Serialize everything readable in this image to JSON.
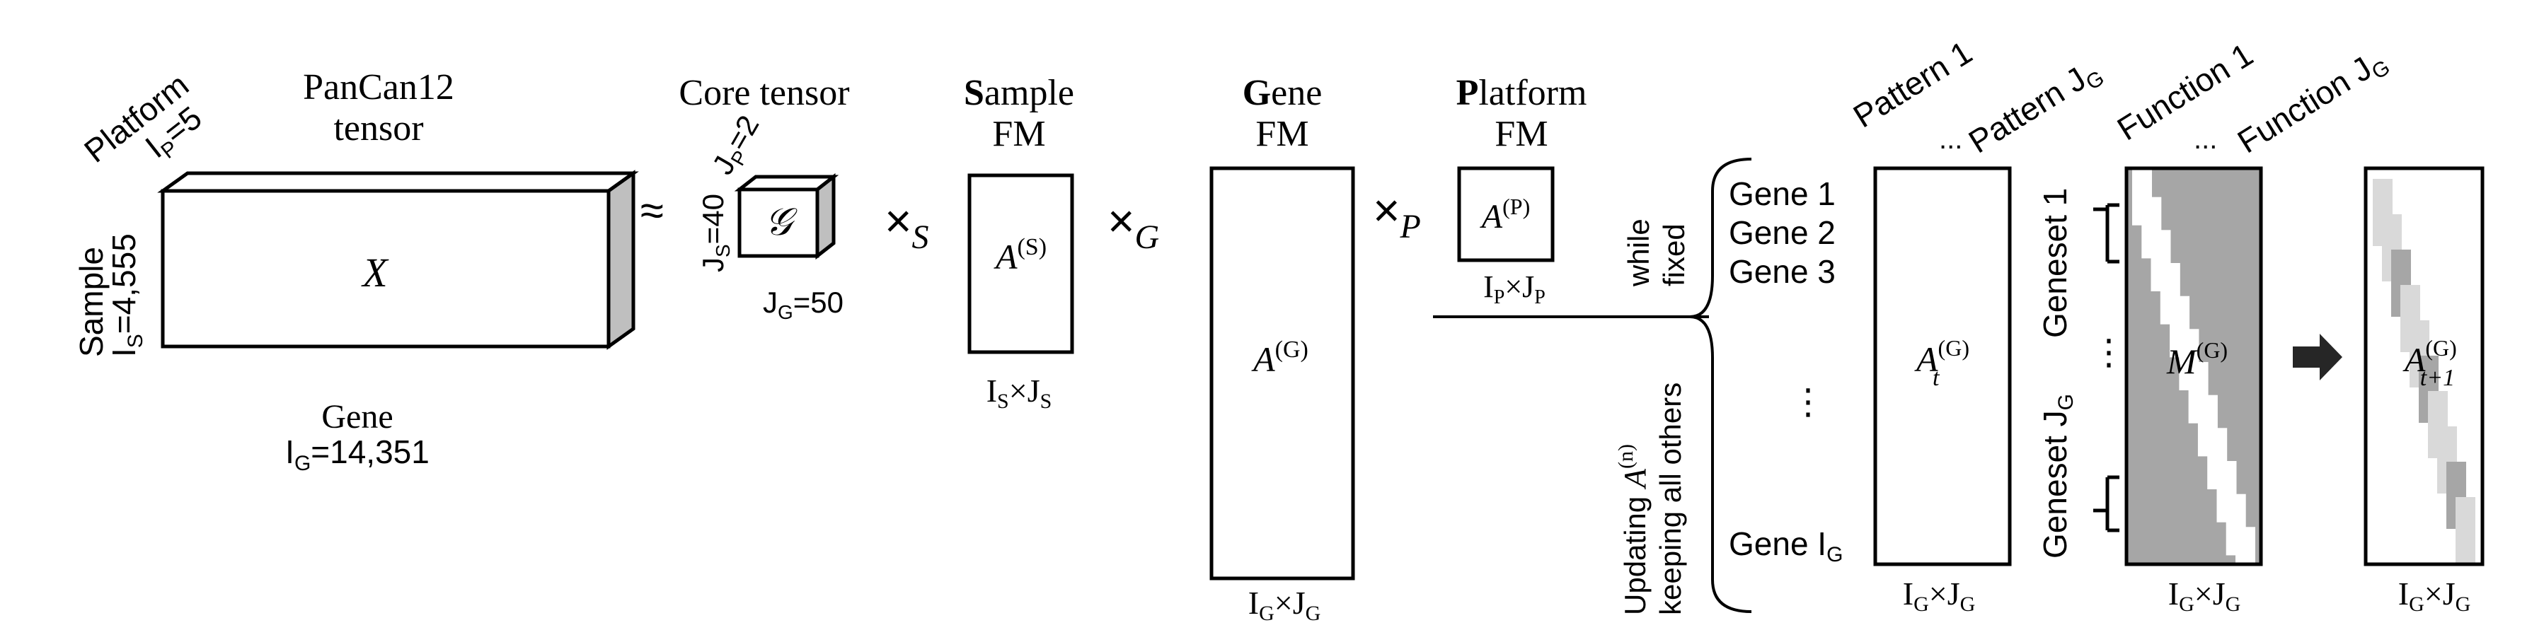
{
  "tensor": {
    "title_line1": "PanCan12",
    "title_line2": "tensor",
    "symbol": "X",
    "platform_axis_label": "Platform",
    "platform_dim": "I",
    "platform_dim_sub": "P",
    "platform_dim_value": "=5",
    "sample_axis_label": "Sample",
    "sample_dim": "I",
    "sample_dim_sub": "S",
    "sample_dim_value": "=4,555",
    "gene_axis_label": "Gene",
    "gene_dim": "I",
    "gene_dim_sub": "G",
    "gene_dim_value": "=14,351"
  },
  "approx_symbol": "≈",
  "core_tensor": {
    "title": "Core tensor",
    "symbol": "𝒢",
    "js_label": "J",
    "js_sub": "S",
    "js_value": "=40",
    "jp_label": "J",
    "jp_sub": "P",
    "jp_value": "=2",
    "jg_label": "J",
    "jg_sub": "G",
    "jg_value": "=50"
  },
  "operators": {
    "times_symbol": "×",
    "sample_mode": "S",
    "gene_mode": "G",
    "platform_mode": "P"
  },
  "sample_fm": {
    "title_bold": "S",
    "title_rest": "ample",
    "title_line2": "FM",
    "symbol": "A",
    "superscript": "(S)",
    "dims_a": "I",
    "dims_a_sub": "S",
    "dims_times": "×",
    "dims_b": "J",
    "dims_b_sub": "S"
  },
  "gene_fm": {
    "title_bold": "G",
    "title_rest": "ene",
    "title_line2": "FM",
    "symbol": "A",
    "superscript": "(G)",
    "dims_a": "I",
    "dims_a_sub": "G",
    "dims_times": "×",
    "dims_b": "J",
    "dims_b_sub": "G"
  },
  "platform_fm": {
    "title_bold": "P",
    "title_rest": "latform",
    "title_line2": "FM",
    "symbol": "A",
    "superscript": "(P)",
    "dims_a": "I",
    "dims_a_sub": "P",
    "dims_times": "×",
    "dims_b": "J",
    "dims_b_sub": "P"
  },
  "update_note": {
    "upper_line1": "while",
    "upper_line2": "fixed",
    "lower_line1_prefix": "Updating",
    "lower_symbol": "A",
    "lower_superscript": "(n)",
    "lower_line2": "keeping all others"
  },
  "pattern_matrix": {
    "col_label_first": "Pattern 1",
    "col_ellipsis": "...",
    "col_label_last": "Pattern J",
    "col_label_last_sub": "G",
    "row_labels": [
      "Gene 1",
      "Gene 2",
      "Gene 3"
    ],
    "row_ellipsis": "⋮",
    "row_label_last": "Gene I",
    "row_label_last_sub": "G",
    "symbol": "A",
    "superscript": "(G)",
    "subscript": "t",
    "dims_a": "I",
    "dims_a_sub": "G",
    "dims_times": "×",
    "dims_b": "J",
    "dims_b_sub": "G"
  },
  "function_matrix": {
    "col_label_first": "Function 1",
    "col_ellipsis": "...",
    "col_label_last": "Function J",
    "col_label_last_sub": "G",
    "row_label_first": "Geneset 1",
    "row_ellipsis": "⋮",
    "row_label_last": "Geneset J",
    "row_label_last_sub": "G",
    "symbol": "M",
    "superscript": "(G)",
    "dims_a": "I",
    "dims_a_sub": "G",
    "dims_times": "×",
    "dims_b": "J",
    "dims_b_sub": "G",
    "fill_color": "#a6a6a6",
    "diagonal_color": "#ffffff"
  },
  "result_matrix": {
    "symbol": "A",
    "superscript": "(G)",
    "subscript": "t+1",
    "dims_a": "I",
    "dims_a_sub": "G",
    "dims_times": "×",
    "dims_b": "J",
    "dims_b_sub": "G",
    "light_color": "#d9d9d9",
    "dark_color": "#a6a6a6"
  },
  "colors": {
    "line": "#000000",
    "tensor_side": "#bfbfbf",
    "arrow": "#262626"
  }
}
